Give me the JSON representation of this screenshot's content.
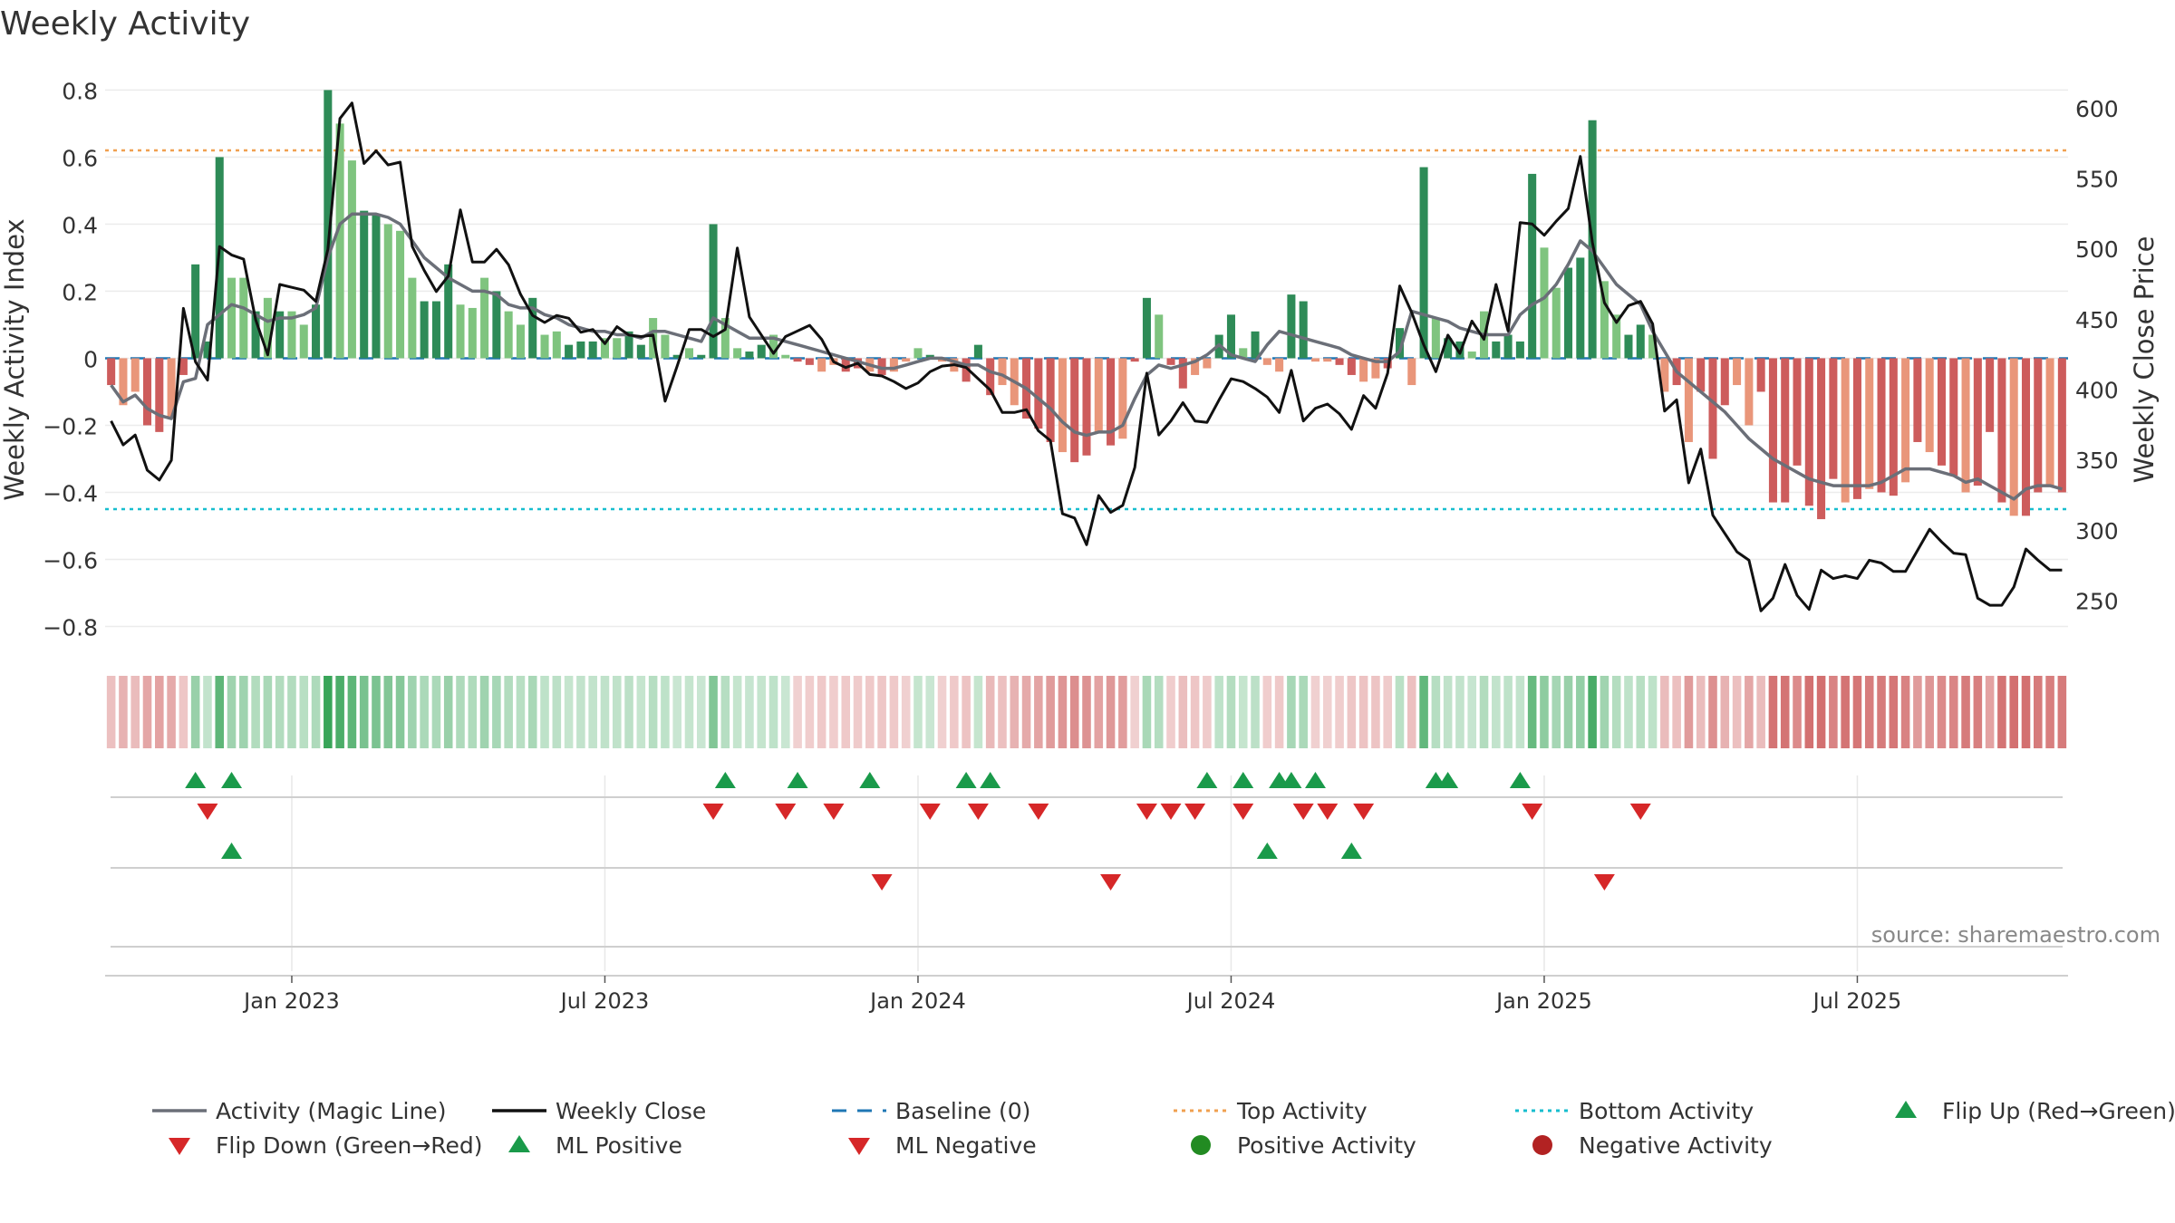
{
  "title": "Weekly Activity",
  "source_note": "source: sharemaestro.com",
  "colors": {
    "pos_strong": "#2e8b57",
    "pos_light": "#7fc47f",
    "neg_strong": "#cd5c5c",
    "neg_light": "#e9967a",
    "magic_line": "#6b6f78",
    "close_line": "#111111",
    "baseline": "#1f77b4",
    "top_line": "#f0a050",
    "bottom_line": "#17becf",
    "flip_up": "#1a9a4a",
    "flip_down": "#d62728",
    "pos_dot": "#228b22",
    "neg_dot": "#b22222"
  },
  "chart_data": {
    "type": "bar+line",
    "ylabel": "Weekly Activity Index",
    "y2label": "Weekly Close Price",
    "ylim": [
      -0.85,
      0.82
    ],
    "y2lim": [
      220,
      618
    ],
    "yticks": [
      0.8,
      0.6,
      0.4,
      0.2,
      0,
      -0.2,
      -0.4,
      -0.6,
      -0.8
    ],
    "ytick_labels": [
      "0.8",
      "0.6",
      "0.4",
      "0.2",
      "0",
      "−0.2",
      "−0.4",
      "−0.6",
      "−0.8"
    ],
    "y2ticks": [
      600,
      550,
      500,
      450,
      400,
      350,
      300,
      250
    ],
    "y2tick_labels": [
      "600",
      "550",
      "500",
      "450",
      "400",
      "350",
      "300",
      "250"
    ],
    "start_week": 0,
    "x_ticks": [
      {
        "week": 15,
        "label": "Jan 2023"
      },
      {
        "week": 41,
        "label": "Jul 2023"
      },
      {
        "week": 67,
        "label": "Jan 2024"
      },
      {
        "week": 93,
        "label": "Jul 2024"
      },
      {
        "week": 119,
        "label": "Jan 2025"
      },
      {
        "week": 145,
        "label": "Jul 2025"
      }
    ],
    "top_activity": 0.62,
    "bottom_activity": -0.45,
    "activity": [
      -0.08,
      -0.14,
      -0.1,
      -0.2,
      -0.22,
      -0.18,
      -0.05,
      0.28,
      0.05,
      0.6,
      0.24,
      0.24,
      0.14,
      0.18,
      0.14,
      0.14,
      0.1,
      0.16,
      0.8,
      0.7,
      0.59,
      0.44,
      0.43,
      0.4,
      0.38,
      0.24,
      0.17,
      0.17,
      0.28,
      0.16,
      0.15,
      0.24,
      0.2,
      0.14,
      0.1,
      0.18,
      0.07,
      0.08,
      0.04,
      0.05,
      0.05,
      0.06,
      0.06,
      0.08,
      0.04,
      0.12,
      0.07,
      0.01,
      0.03,
      0.01,
      0.4,
      0.12,
      0.03,
      0.02,
      0.04,
      0.07,
      0.01,
      -0.01,
      -0.02,
      -0.04,
      -0.02,
      -0.04,
      -0.03,
      -0.04,
      -0.05,
      -0.04,
      -0.01,
      0.03,
      0.01,
      -0.01,
      -0.04,
      -0.07,
      0.04,
      -0.11,
      -0.08,
      -0.14,
      -0.18,
      -0.21,
      -0.25,
      -0.28,
      -0.31,
      -0.29,
      -0.22,
      -0.26,
      -0.24,
      -0.01,
      0.18,
      0.13,
      -0.02,
      -0.09,
      -0.05,
      -0.03,
      0.07,
      0.13,
      0.03,
      0.08,
      -0.02,
      -0.04,
      0.19,
      0.17,
      -0.01,
      -0.01,
      -0.02,
      -0.05,
      -0.07,
      -0.06,
      -0.03,
      0.09,
      -0.08,
      0.57,
      0.12,
      0.06,
      0.05,
      0.02,
      0.14,
      0.05,
      0.07,
      0.05,
      0.55,
      0.33,
      0.21,
      0.27,
      0.3,
      0.71,
      0.23,
      0.13,
      0.07,
      0.1,
      0.07,
      -0.1,
      -0.08,
      -0.25,
      -0.1,
      -0.3,
      -0.14,
      -0.08,
      -0.2,
      -0.1,
      -0.43,
      -0.43,
      -0.32,
      -0.44,
      -0.48,
      -0.36,
      -0.43,
      -0.42,
      -0.39,
      -0.4,
      -0.41,
      -0.37,
      -0.25,
      -0.28,
      -0.32,
      -0.35,
      -0.4,
      -0.38,
      -0.22,
      -0.43,
      -0.47,
      -0.47,
      -0.4,
      -0.38,
      -0.4
    ],
    "activity_shade": [
      "strong",
      "light",
      "light",
      "strong",
      "strong",
      "light",
      "strong",
      "strong",
      "strong",
      "strong",
      "light",
      "light",
      "strong",
      "light",
      "strong",
      "light",
      "light",
      "strong",
      "strong",
      "light",
      "light",
      "strong",
      "strong",
      "light",
      "light",
      "light",
      "strong",
      "strong",
      "strong",
      "light",
      "light",
      "light",
      "strong",
      "light",
      "light",
      "strong",
      "light",
      "light",
      "strong",
      "strong",
      "strong",
      "light",
      "light",
      "strong",
      "strong",
      "light",
      "light",
      "strong",
      "light",
      "strong",
      "strong",
      "light",
      "light",
      "strong",
      "strong",
      "light",
      "light",
      "strong",
      "strong",
      "light",
      "light",
      "strong",
      "strong",
      "light",
      "strong",
      "light",
      "light",
      "light",
      "strong",
      "light",
      "light",
      "strong",
      "strong",
      "strong",
      "light",
      "light",
      "strong",
      "strong",
      "strong",
      "light",
      "strong",
      "strong",
      "light",
      "strong",
      "light",
      "strong",
      "strong",
      "light",
      "strong",
      "strong",
      "light",
      "light",
      "strong",
      "strong",
      "light",
      "strong",
      "light",
      "light",
      "strong",
      "strong",
      "light",
      "light",
      "strong",
      "strong",
      "light",
      "light",
      "strong",
      "strong",
      "light",
      "strong",
      "light",
      "strong",
      "strong",
      "light",
      "light",
      "strong",
      "strong",
      "strong",
      "strong",
      "light",
      "light",
      "strong",
      "strong",
      "strong",
      "light",
      "light",
      "strong",
      "strong",
      "light",
      "light",
      "strong",
      "light",
      "strong",
      "strong",
      "strong",
      "light",
      "light",
      "strong",
      "strong",
      "strong",
      "strong",
      "strong",
      "strong",
      "strong",
      "light",
      "strong",
      "light",
      "strong",
      "strong",
      "light",
      "strong",
      "light",
      "strong",
      "strong",
      "light",
      "strong",
      "strong",
      "strong",
      "light",
      "strong",
      "strong",
      "light",
      "strong"
    ],
    "magic_line": [
      -0.08,
      -0.13,
      -0.11,
      -0.15,
      -0.17,
      -0.18,
      -0.07,
      -0.06,
      0.1,
      0.13,
      0.16,
      0.15,
      0.13,
      0.11,
      0.12,
      0.12,
      0.13,
      0.15,
      0.3,
      0.4,
      0.43,
      0.43,
      0.43,
      0.42,
      0.4,
      0.35,
      0.3,
      0.27,
      0.24,
      0.22,
      0.2,
      0.2,
      0.19,
      0.16,
      0.15,
      0.15,
      0.13,
      0.12,
      0.1,
      0.09,
      0.08,
      0.08,
      0.07,
      0.07,
      0.06,
      0.08,
      0.08,
      0.07,
      0.06,
      0.05,
      0.12,
      0.1,
      0.08,
      0.06,
      0.06,
      0.06,
      0.05,
      0.04,
      0.03,
      0.02,
      0.01,
      0.0,
      -0.01,
      -0.02,
      -0.03,
      -0.03,
      -0.02,
      -0.01,
      0.0,
      0.0,
      -0.01,
      -0.02,
      -0.02,
      -0.04,
      -0.05,
      -0.07,
      -0.09,
      -0.12,
      -0.15,
      -0.19,
      -0.22,
      -0.23,
      -0.22,
      -0.22,
      -0.2,
      -0.12,
      -0.05,
      -0.02,
      -0.03,
      -0.02,
      -0.01,
      0.01,
      0.04,
      0.01,
      0.0,
      -0.01,
      0.04,
      0.08,
      0.07,
      0.06,
      0.05,
      0.04,
      0.03,
      0.01,
      0.0,
      -0.01,
      -0.01,
      0.02,
      0.14,
      0.13,
      0.12,
      0.11,
      0.09,
      0.08,
      0.07,
      0.07,
      0.07,
      0.13,
      0.16,
      0.18,
      0.22,
      0.28,
      0.35,
      0.32,
      0.27,
      0.22,
      0.19,
      0.16,
      0.08,
      0.02,
      -0.04,
      -0.07,
      -0.1,
      -0.13,
      -0.16,
      -0.2,
      -0.24,
      -0.27,
      -0.3,
      -0.32,
      -0.34,
      -0.36,
      -0.37,
      -0.38,
      -0.38,
      -0.38,
      -0.38,
      -0.37,
      -0.35,
      -0.33,
      -0.33,
      -0.33,
      -0.34,
      -0.35,
      -0.37,
      -0.36,
      -0.38,
      -0.4,
      -0.42,
      -0.39,
      -0.38,
      -0.38,
      -0.39
    ],
    "close": [
      378,
      361,
      368,
      343,
      336,
      350,
      458,
      420,
      407,
      502,
      496,
      493,
      450,
      425,
      475,
      473,
      471,
      463,
      500,
      593,
      604,
      561,
      570,
      560,
      562,
      502,
      485,
      470,
      481,
      528,
      491,
      491,
      500,
      489,
      468,
      453,
      448,
      453,
      451,
      441,
      443,
      433,
      445,
      439,
      438,
      439,
      392,
      417,
      443,
      443,
      438,
      443,
      501,
      452,
      439,
      426,
      438,
      442,
      446,
      436,
      420,
      416,
      419,
      411,
      410,
      406,
      401,
      405,
      413,
      417,
      418,
      416,
      408,
      400,
      384,
      384,
      386,
      371,
      364,
      312,
      309,
      290,
      325,
      313,
      318,
      345,
      412,
      368,
      378,
      391,
      378,
      377,
      393,
      408,
      406,
      401,
      395,
      384,
      414,
      378,
      387,
      390,
      383,
      372,
      396,
      387,
      412,
      474,
      455,
      432,
      413,
      439,
      426,
      449,
      436,
      475,
      442,
      519,
      518,
      510,
      520,
      529,
      566,
      505,
      462,
      448,
      460,
      463,
      447,
      385,
      393,
      334,
      358,
      311,
      298,
      285,
      279,
      243,
      252,
      276,
      254,
      244,
      272,
      266,
      268,
      266,
      279,
      277,
      271,
      271,
      286,
      301,
      292,
      284,
      283,
      252,
      247,
      247,
      260,
      287,
      279,
      272,
      272
    ],
    "flip_up_weeks": [
      7,
      10,
      51,
      57,
      63,
      71,
      73,
      91,
      94,
      97,
      98,
      100,
      110,
      111,
      117
    ],
    "flip_down_weeks": [
      8,
      50,
      56,
      60,
      68,
      72,
      77,
      86,
      88,
      90,
      94,
      99,
      101,
      104,
      118,
      127
    ],
    "ml_positive_weeks": [
      10,
      96,
      103
    ],
    "ml_negative_weeks": [
      64,
      83,
      124
    ]
  },
  "legend": [
    {
      "label": "Activity (Magic Line)",
      "kind": "line-solid-grey"
    },
    {
      "label": "Weekly Close",
      "kind": "line-solid-black"
    },
    {
      "label": "Baseline (0)",
      "kind": "line-dash-blue"
    },
    {
      "label": "Top Activity",
      "kind": "line-dot-orange"
    },
    {
      "label": "Bottom Activity",
      "kind": "line-dot-cyan"
    },
    {
      "label": "Flip Up (Red→Green)",
      "kind": "triangle-up-green"
    },
    {
      "label": "Flip Down (Green→Red)",
      "kind": "triangle-down-red"
    },
    {
      "label": "ML Positive",
      "kind": "triangle-up-green"
    },
    {
      "label": "ML Negative",
      "kind": "triangle-down-red"
    },
    {
      "label": "Positive Activity",
      "kind": "dot-green"
    },
    {
      "label": "Negative Activity",
      "kind": "dot-red"
    }
  ]
}
